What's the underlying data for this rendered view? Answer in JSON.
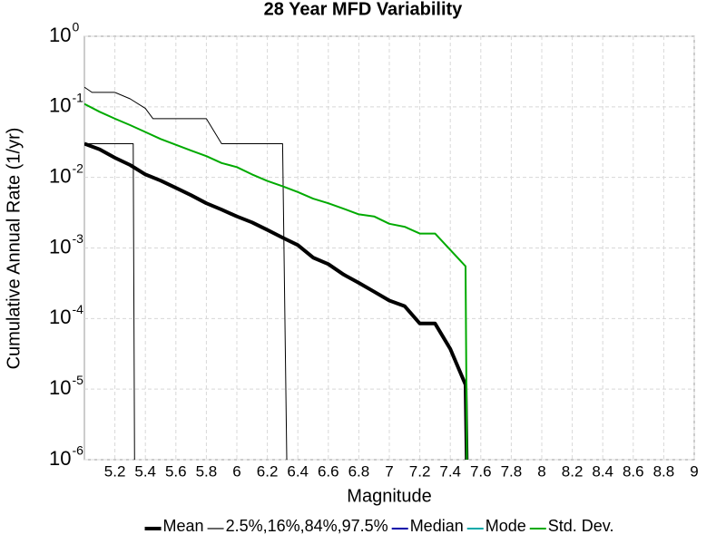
{
  "chart_data": {
    "type": "line",
    "title": "28 Year MFD Variability",
    "x_label": "Magnitude",
    "y_label": "Cumulative Annual Rate (1/yr)",
    "log_y": true,
    "grid": true,
    "legend": "bottom",
    "xlim": [
      5,
      9
    ],
    "ylim": [
      1e-06,
      1
    ],
    "xticks": [
      5.2,
      5.4,
      5.6,
      5.8,
      6,
      6.2,
      6.4,
      6.6,
      6.8,
      7,
      7.2,
      7.4,
      7.6,
      7.8,
      8,
      8.2,
      8.4,
      8.6,
      8.8,
      9
    ],
    "yticks": [
      {
        "value": 1,
        "label": "10",
        "exponent": "0"
      },
      {
        "value": 0.1,
        "label": "10",
        "exponent": "-1"
      },
      {
        "value": 0.01,
        "label": "10",
        "exponent": "-2"
      },
      {
        "value": 0.001,
        "label": "10",
        "exponent": "-3"
      },
      {
        "value": 0.0001,
        "label": "10",
        "exponent": "-4"
      },
      {
        "value": 1e-05,
        "label": "10",
        "exponent": "-5"
      },
      {
        "value": 1e-06,
        "label": "10",
        "exponent": "-6"
      }
    ],
    "series": [
      {
        "name": "Mean",
        "color": "#000000",
        "width": 4,
        "x": [
          5.0,
          5.1,
          5.2,
          5.3,
          5.4,
          5.5,
          5.6,
          5.7,
          5.8,
          5.9,
          6.0,
          6.1,
          6.2,
          6.3,
          6.4,
          6.5,
          6.6,
          6.7,
          6.8,
          6.9,
          7.0,
          7.1,
          7.2,
          7.3,
          7.4,
          7.5,
          7.51
        ],
        "values": [
          0.03,
          0.025,
          0.019,
          0.015,
          0.011,
          0.009,
          0.0071,
          0.0056,
          0.0043,
          0.0035,
          0.0028,
          0.0023,
          0.0018,
          0.0014,
          0.0011,
          0.00073,
          0.00059,
          0.00042,
          0.00032,
          0.00024,
          0.00018,
          0.00015,
          8.5e-05,
          8.5e-05,
          3.7e-05,
          1.15e-05,
          0
        ]
      },
      {
        "name": "2.5%,16%,84%,97.5%",
        "color": "#000000",
        "width": 1,
        "x": [
          5.0,
          5.32,
          5.33,
          5.34,
          5.0,
          5.05,
          5.2,
          5.3,
          5.4,
          5.45,
          5.8,
          5.9,
          6.3,
          6.33
        ],
        "values": [
          0.03,
          0.03,
          0,
          null,
          0.19,
          0.16,
          0.16,
          0.13,
          0.095,
          0.068,
          0.068,
          0.03,
          0.03,
          0
        ]
      },
      {
        "name": "Median",
        "color": "#0000aa",
        "width": 2,
        "x": [],
        "values": []
      },
      {
        "name": "Mode",
        "color": "#00aaaa",
        "width": 2,
        "x": [],
        "values": []
      },
      {
        "name": "Std. Dev.",
        "color": "#00aa00",
        "width": 2,
        "x": [
          5.0,
          5.1,
          5.2,
          5.3,
          5.4,
          5.5,
          5.6,
          5.7,
          5.8,
          5.9,
          6.0,
          6.1,
          6.2,
          6.3,
          6.4,
          6.5,
          6.6,
          6.7,
          6.8,
          6.9,
          7.0,
          7.1,
          7.2,
          7.3,
          7.5,
          7.51
        ],
        "values": [
          0.11,
          0.085,
          0.068,
          0.055,
          0.044,
          0.035,
          0.029,
          0.024,
          0.02,
          0.016,
          0.014,
          0.011,
          0.0089,
          0.0075,
          0.0062,
          0.005,
          0.0043,
          0.0036,
          0.003,
          0.0028,
          0.0022,
          0.002,
          0.0016,
          0.0016,
          0.00055,
          0
        ]
      }
    ]
  }
}
